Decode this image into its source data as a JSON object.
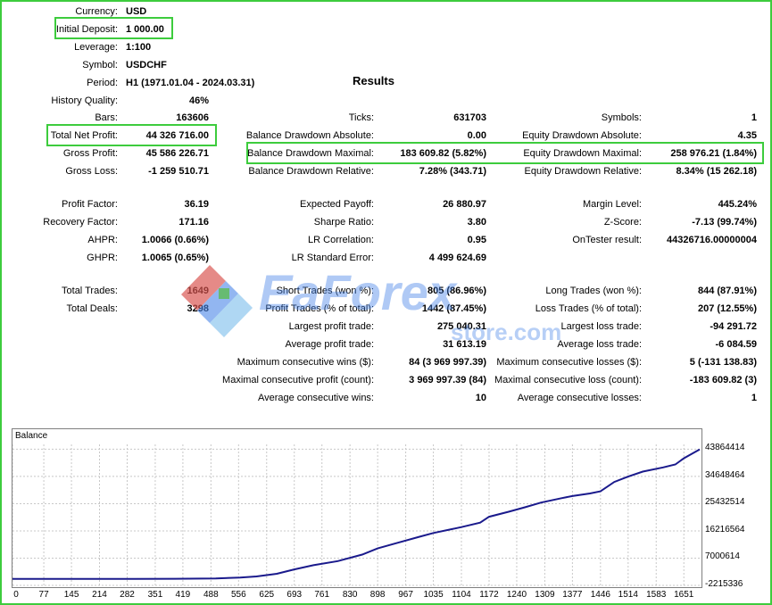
{
  "settings": {
    "currency_label": "Currency:",
    "currency": "USD",
    "deposit_label": "Initial Deposit:",
    "deposit": "1 000.00",
    "leverage_label": "Leverage:",
    "leverage": "1:100",
    "symbol_label": "Symbol:",
    "symbol": "USDCHF",
    "period_label": "Period:",
    "period": "H1 (1971.01.04 - 2024.03.31)"
  },
  "results_title": "Results",
  "history_quality_label": "History Quality:",
  "history_quality": "46%",
  "row_bars": {
    "bars_label": "Bars:",
    "bars": "163606",
    "ticks_label": "Ticks:",
    "ticks": "631703",
    "symbols_label": "Symbols:",
    "symbols": "1"
  },
  "row_net": {
    "net_label": "Total Net Profit:",
    "net": "44 326 716.00",
    "bda_label": "Balance Drawdown Absolute:",
    "bda": "0.00",
    "eda_label": "Equity Drawdown Absolute:",
    "eda": "4.35"
  },
  "row_gross": {
    "gp_label": "Gross Profit:",
    "gp": "45 586 226.71",
    "bdm_label": "Balance Drawdown Maximal:",
    "bdm": "183 609.82 (5.82%)",
    "edm_label": "Equity Drawdown Maximal:",
    "edm": "258 976.21 (1.84%)"
  },
  "row_loss": {
    "gl_label": "Gross Loss:",
    "gl": "-1 259 510.71",
    "bdr_label": "Balance Drawdown Relative:",
    "bdr": "7.28% (343.71)",
    "edr_label": "Equity Drawdown Relative:",
    "edr": "8.34% (15 262.18)"
  },
  "row_pf": {
    "pf_label": "Profit Factor:",
    "pf": "36.19",
    "ep_label": "Expected Payoff:",
    "ep": "26 880.97",
    "ml_label": "Margin Level:",
    "ml": "445.24%"
  },
  "row_rf": {
    "rf_label": "Recovery Factor:",
    "rf": "171.16",
    "sr_label": "Sharpe Ratio:",
    "sr": "3.80",
    "zs_label": "Z-Score:",
    "zs": "-7.13 (99.74%)"
  },
  "row_ahpr": {
    "ahpr_label": "AHPR:",
    "ahpr": "1.0066 (0.66%)",
    "lrc_label": "LR Correlation:",
    "lrc": "0.95",
    "otr_label": "OnTester result:",
    "otr": "44326716.00000004"
  },
  "row_ghpr": {
    "ghpr_label": "GHPR:",
    "ghpr": "1.0065 (0.65%)",
    "lrse_label": "LR Standard Error:",
    "lrse": "4 499 624.69"
  },
  "row_tt": {
    "tt_label": "Total Trades:",
    "tt": "1649",
    "st_label": "Short Trades (won %):",
    "st": "805 (86.96%)",
    "lt_label": "Long Trades (won %):",
    "lt": "844 (87.91%)"
  },
  "row_td": {
    "td_label": "Total Deals:",
    "td": "3298",
    "pt_label": "Profit Trades (% of total):",
    "pt": "1442 (87.45%)",
    "lost_label": "Loss Trades (% of total):",
    "lost": "207 (12.55%)"
  },
  "row_lp": {
    "lp_label": "Largest profit trade:",
    "lp": "275 040.31",
    "ll_label": "Largest loss trade:",
    "ll": "-94 291.72"
  },
  "row_ap": {
    "ap_label": "Average profit trade:",
    "ap": "31 613.19",
    "al_label": "Average loss trade:",
    "al": "-6 084.59"
  },
  "row_mcw": {
    "mcw_label": "Maximum consecutive wins ($):",
    "mcw": "84 (3 969 997.39)",
    "mcl_label": "Maximum consecutive losses ($):",
    "mcl": "5 (-131 138.83)"
  },
  "row_mcp": {
    "mcp_label": "Maximal consecutive profit (count):",
    "mcp": "3 969 997.39 (84)",
    "mclc_label": "Maximal consecutive loss (count):",
    "mclc": "-183 609.82 (3)"
  },
  "row_acw": {
    "acw_label": "Average consecutive wins:",
    "acw": "10",
    "acl_label": "Average consecutive losses:",
    "acl": "1"
  },
  "watermark": {
    "brand": "EaForex",
    "sub": "store.com"
  },
  "chart_data": {
    "type": "line",
    "title": "Balance",
    "x_ticks": [
      "0",
      "77",
      "145",
      "214",
      "282",
      "351",
      "419",
      "488",
      "556",
      "625",
      "693",
      "761",
      "830",
      "898",
      "967",
      "1035",
      "1104",
      "1172",
      "1240",
      "1309",
      "1377",
      "1446",
      "1514",
      "1583",
      "1651"
    ],
    "y_ticks": [
      "43864414",
      "34648464",
      "25432514",
      "16216564",
      "7000614",
      "-2215336"
    ],
    "xlim": [
      0,
      1690
    ],
    "ylim": [
      -2215336,
      45500000
    ],
    "color": "#1a1a8c",
    "series": [
      {
        "x": [
          0,
          100,
          200,
          300,
          400,
          500,
          560,
          600,
          650,
          693,
          740,
          800,
          860,
          898,
          950,
          1000,
          1035,
          1080,
          1104,
          1150,
          1172,
          1220,
          1260,
          1300,
          1350,
          1377,
          1420,
          1446,
          1480,
          1514,
          1550,
          1600,
          1630,
          1651,
          1690
        ],
        "y": [
          1000,
          1000,
          1000,
          1000,
          20000,
          150000,
          400000,
          800000,
          1700000,
          3200000,
          4600000,
          6000000,
          8200000,
          10300000,
          12300000,
          14200000,
          15500000,
          16800000,
          17500000,
          19000000,
          21000000,
          22700000,
          24200000,
          25800000,
          27300000,
          28000000,
          28900000,
          29600000,
          32800000,
          34600000,
          36300000,
          37700000,
          38700000,
          40800000,
          43800000
        ]
      }
    ]
  }
}
